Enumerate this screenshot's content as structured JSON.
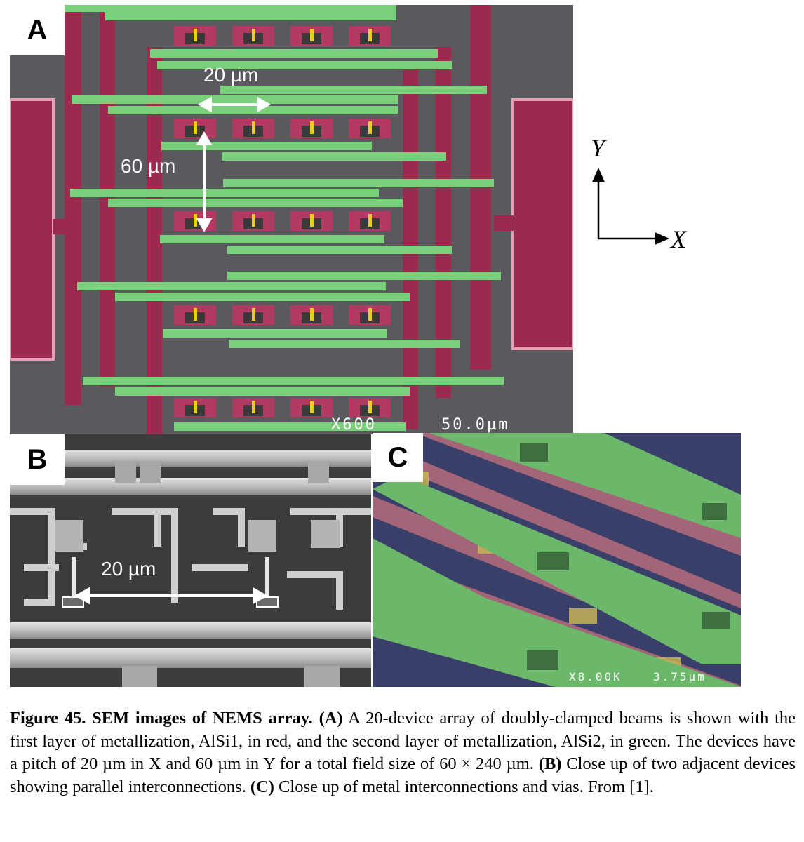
{
  "panels": {
    "a": {
      "letter": "A",
      "scale_x": "20 µm",
      "scale_y": "60 µm",
      "magnification": "X600",
      "scale_bar": "50.0µm"
    },
    "b": {
      "letter": "B",
      "scale_x": "20 µm"
    },
    "c": {
      "letter": "C",
      "magnification": "X8.00K",
      "scale_bar": "3.75µm"
    }
  },
  "axes": {
    "y": "Y",
    "x": "X"
  },
  "caption": {
    "label": "Figure 45. SEM images of NEMS array.",
    "a_tag": "(A)",
    "a_text": " A 20-device array of doubly-clamped beams is shown with the first layer of metallization, AlSi1, in red, and the second layer of metallization, AlSi2, in green. The devices have a pitch of 20 µm in X and 60 µm in Y for a total field size of 60 × 240 µm. ",
    "b_tag": "(B)",
    "b_text": " Close up of two adjacent devices showing parallel interconnections. ",
    "c_tag": "(C)",
    "c_text": " Close up of metal interconnections and vias. From [1]."
  },
  "colors": {
    "metal1": "#9b2a4e",
    "metal2": "#7ccf7a",
    "device": "#e8d11a",
    "substrate": "#5a5a5e"
  }
}
